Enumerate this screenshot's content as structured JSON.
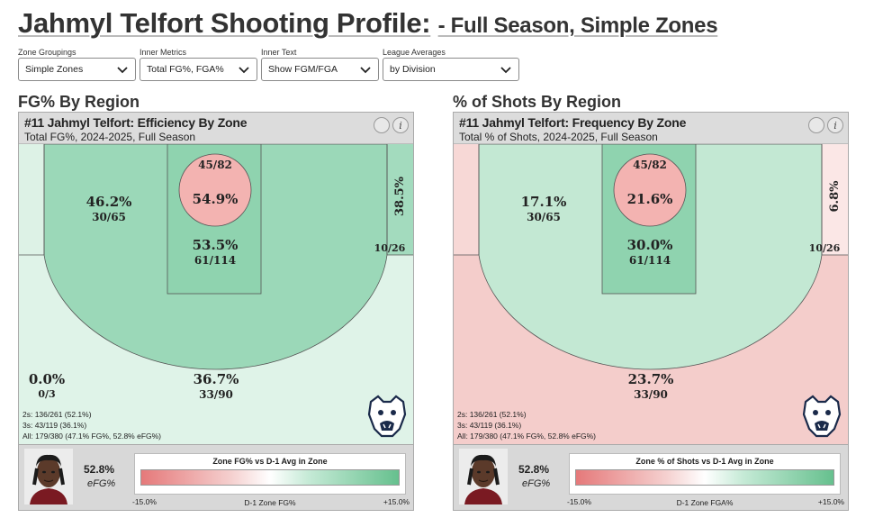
{
  "title": {
    "main": "Jahmyl Telfort Shooting Profile:",
    "sub": "- Full Season, Simple Zones"
  },
  "controls": [
    {
      "label": "Zone Groupings",
      "value": "Simple Zones"
    },
    {
      "label": "Inner Metrics",
      "value": "Total FG%, FGA%"
    },
    {
      "label": "Inner Text",
      "value": "Show FGM/FGA"
    },
    {
      "label": "League Averages",
      "value": "by Division"
    }
  ],
  "left_panel": {
    "heading": "FG% By Region",
    "title": "#11 Jahmyl Telfort: Efficiency By Zone",
    "subtitle": "Total FG%, 2024-2025, Full Season",
    "zones": {
      "rim_pct": "54.9%",
      "rim_frac": "45/82",
      "paint_pct": "53.5%",
      "paint_frac": "61/114",
      "mid_pct": "46.2%",
      "mid_frac": "30/65",
      "corner_r_pct": "38.5%",
      "corner_r_frac": "10/26",
      "corner_l_pct": "0.0%",
      "corner_l_frac": "0/3",
      "three_pct": "36.7%",
      "three_frac": "33/90"
    },
    "summary": [
      "2s: 136/261 (52.1%)",
      "3s: 43/119 (36.1%)",
      "All: 179/380 (47.1% FG%, 52.8% eFG%)"
    ],
    "efg_value": "52.8%",
    "efg_label": "eFG%",
    "scale_title": "Zone FG% vs D-1 Avg in Zone",
    "scale_min": "-15.0%",
    "scale_mid": "D-1 Zone FG%",
    "scale_max": "+15.0%",
    "colors": {
      "corner_l": "#ddf2e6",
      "mid": "#9bd8b8",
      "paint": "#8fd3af",
      "rim": "#f3b3b1",
      "corner_r": "#a3dbbe",
      "three": "#dff3e8"
    }
  },
  "right_panel": {
    "heading": "% of Shots By Region",
    "title": "#11 Jahmyl Telfort: Frequency By Zone",
    "subtitle": "Total % of Shots, 2024-2025, Full Season",
    "zones": {
      "rim_pct": "21.6%",
      "rim_frac": "45/82",
      "paint_pct": "30.0%",
      "paint_frac": "61/114",
      "mid_pct": "17.1%",
      "mid_frac": "30/65",
      "corner_r_pct": "6.8%",
      "corner_r_frac": "10/26",
      "three_pct": "23.7%",
      "three_frac": "33/90"
    },
    "summary": [
      "2s: 136/261 (52.1%)",
      "3s: 43/119 (36.1%)",
      "All: 179/380 (47.1% FG%, 52.8% eFG%)"
    ],
    "efg_value": "52.8%",
    "efg_label": "eFG%",
    "scale_title": "Zone % of Shots vs D-1 Avg in Zone",
    "scale_min": "-15.0%",
    "scale_mid": "D-1 Zone FGA%",
    "scale_max": "+15.0%",
    "colors": {
      "corner_l": "#f7d8d6",
      "mid": "#c3e8d3",
      "paint": "#8fd3af",
      "rim": "#f3b3b1",
      "corner_r": "#fbe7e6",
      "three": "#f4cdcb"
    }
  }
}
